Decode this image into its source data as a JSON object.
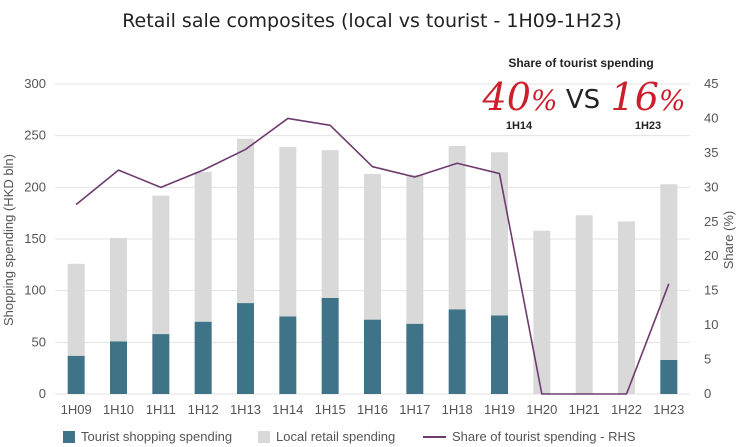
{
  "chart_data": {
    "type": "bar",
    "title": "Retail sale composites (local vs tourist - 1H09-1H23)",
    "categories": [
      "1H09",
      "1H10",
      "1H11",
      "1H12",
      "1H13",
      "1H14",
      "1H15",
      "1H16",
      "1H17",
      "1H18",
      "1H19",
      "1H20",
      "1H21",
      "1H22",
      "1H23"
    ],
    "stacked": true,
    "series": [
      {
        "name": "Tourist shopping spending",
        "axis": "left",
        "color": "#3f7488",
        "values": [
          37,
          51,
          58,
          70,
          88,
          75,
          93,
          72,
          68,
          82,
          76,
          0,
          0,
          0,
          33
        ]
      },
      {
        "name": "Local retail spending",
        "axis": "left",
        "color": "#d9d9d9",
        "values": [
          89,
          100,
          134,
          145,
          159,
          164,
          143,
          141,
          144,
          158,
          158,
          158,
          173,
          167,
          170
        ]
      },
      {
        "name": "Share of tourist spending - RHS",
        "axis": "right",
        "type": "line",
        "color": "#6e3b6e",
        "values": [
          27.5,
          32.5,
          30,
          32.5,
          35.5,
          40,
          39,
          33,
          31.5,
          33.5,
          32,
          0,
          0,
          0,
          16
        ]
      }
    ],
    "ylabel": "Shopping spending (HKD bln)",
    "ylabel_right": "Share (%)",
    "ylim": [
      0,
      300
    ],
    "ylim_right": [
      0,
      45
    ],
    "yticks": [
      "0",
      "50",
      "100",
      "150",
      "200",
      "250",
      "300"
    ],
    "yticks_right": [
      "0",
      "5",
      "10",
      "15",
      "20",
      "25",
      "30",
      "35",
      "40",
      "45"
    ],
    "grid": true,
    "legend_position": "bottom",
    "annotation": {
      "heading": "Share of tourist spending",
      "left_value": "40",
      "right_value": "16",
      "percent_sign": "%",
      "vs": "VS",
      "left_label": "1H14",
      "right_label": "1H23"
    }
  }
}
